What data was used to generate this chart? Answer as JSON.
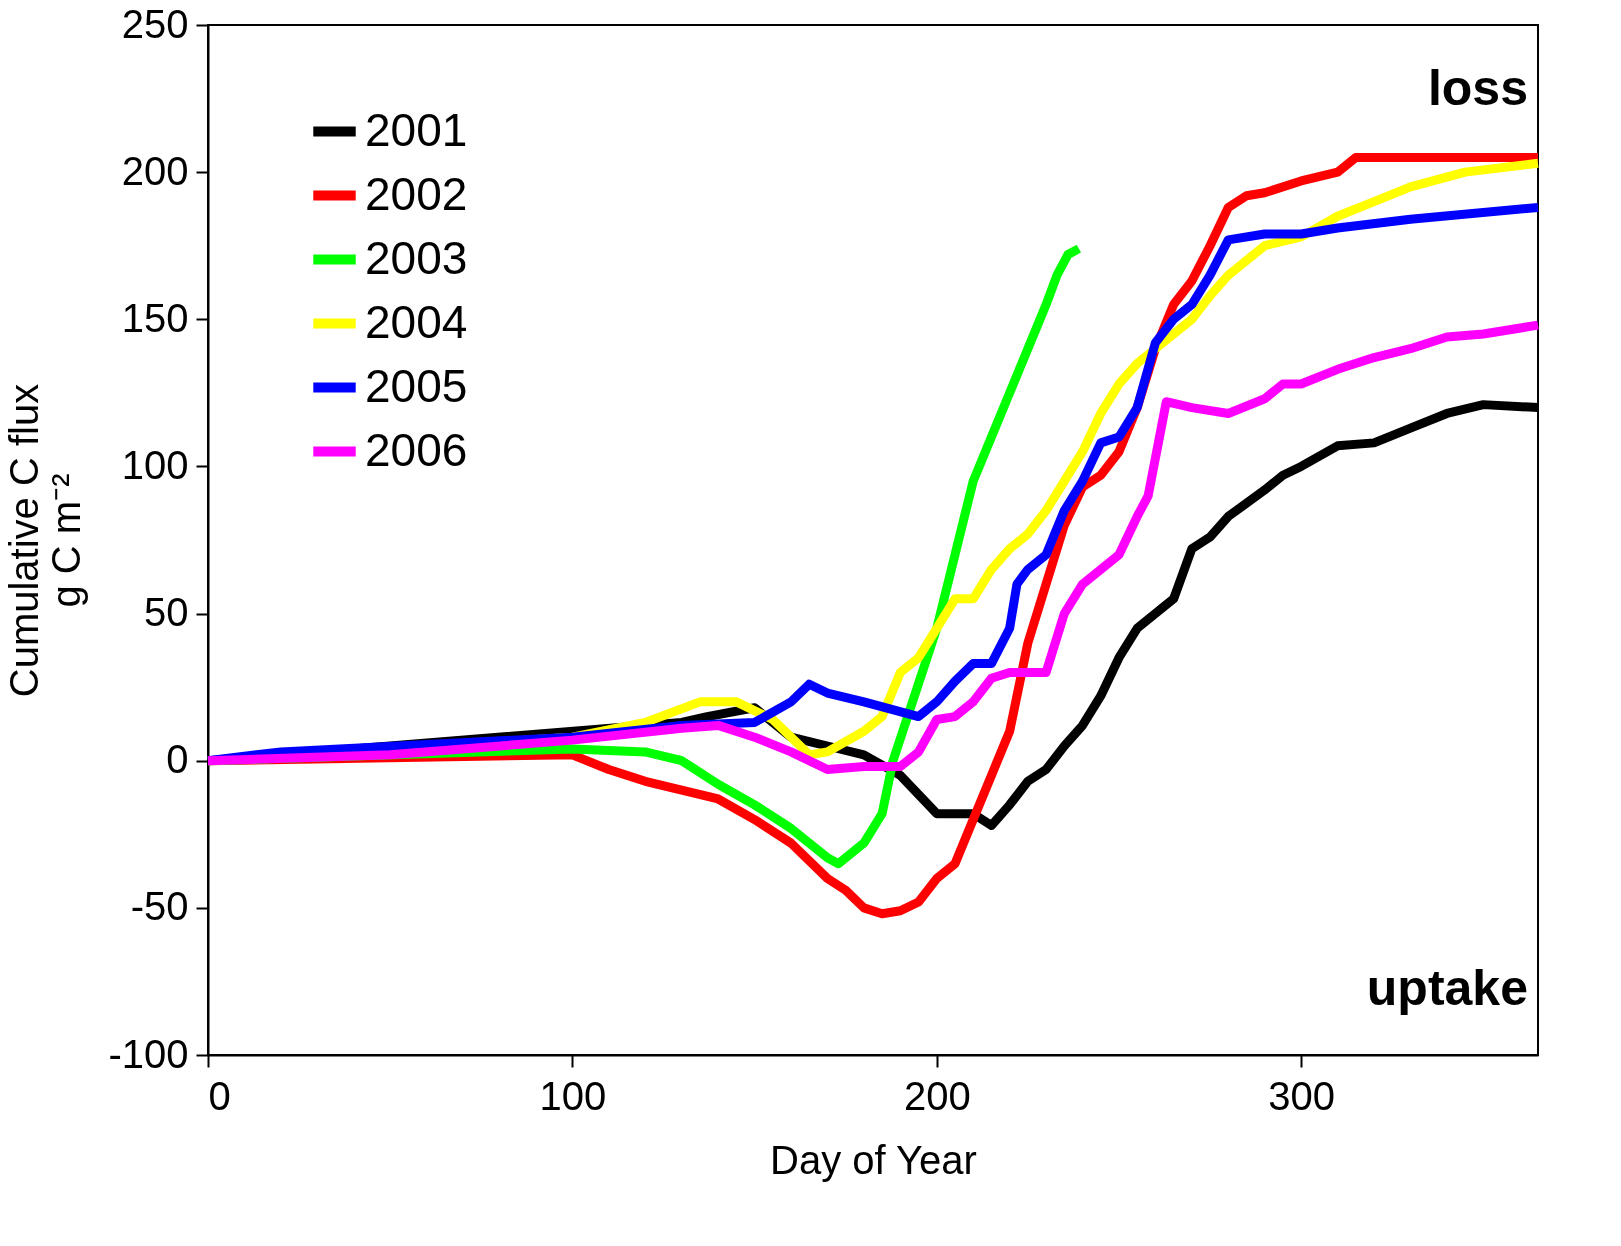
{
  "chart_data": {
    "type": "line",
    "xlabel": "Day of Year",
    "ylabel": "Cumulative C flux\ng C m⁻²",
    "xlim": [
      0,
      365
    ],
    "ylim": [
      -100,
      250
    ],
    "xticks": [
      0,
      100,
      200,
      300
    ],
    "yticks": [
      -100,
      -50,
      0,
      50,
      100,
      150,
      200,
      250
    ],
    "grid": false,
    "legend": "top left",
    "marker": "none",
    "line_style": "solid",
    "annotations": [
      "loss",
      "uptake"
    ],
    "series": [
      {
        "name": "2001",
        "color": "#000000",
        "x": [
          0,
          130,
          137,
          150,
          160,
          170,
          180,
          190,
          200,
          210,
          215,
          220,
          225,
          230,
          235,
          240,
          245,
          250,
          255,
          260,
          265,
          270,
          275,
          280,
          290,
          295,
          300,
          310,
          320,
          330,
          340,
          350,
          365
        ],
        "values": [
          0,
          13,
          15,
          18,
          8,
          5,
          2,
          -5,
          -18,
          -18,
          -22,
          -15,
          -7,
          -3,
          5,
          12,
          22,
          35,
          45,
          50,
          55,
          72,
          76,
          83,
          92,
          97,
          100,
          107,
          108,
          113,
          118,
          121,
          120
        ]
      },
      {
        "name": "2002",
        "color": "#ff0000",
        "x": [
          0,
          100,
          110,
          120,
          130,
          140,
          150,
          160,
          170,
          175,
          180,
          185,
          190,
          195,
          200,
          205,
          210,
          215,
          220,
          225,
          230,
          235,
          240,
          245,
          250,
          255,
          260,
          265,
          270,
          275,
          280,
          285,
          290,
          300,
          310,
          315,
          330,
          365
        ],
        "values": [
          0,
          2,
          -3,
          -7,
          -10,
          -13,
          -20,
          -28,
          -40,
          -44,
          -50,
          -52,
          -51,
          -48,
          -40,
          -35,
          -20,
          -5,
          10,
          40,
          60,
          80,
          93,
          97,
          105,
          120,
          140,
          155,
          163,
          175,
          188,
          192,
          193,
          197,
          200,
          205,
          205,
          205
        ]
      },
      {
        "name": "2003",
        "color": "#00ff00",
        "x": [
          0,
          100,
          120,
          130,
          140,
          150,
          160,
          170,
          173,
          180,
          185,
          188,
          192,
          200,
          205,
          210,
          215,
          220,
          225,
          230,
          233,
          236,
          239
        ],
        "values": [
          0,
          4,
          3,
          0,
          -8,
          -15,
          -23,
          -33,
          -35,
          -28,
          -18,
          0,
          15,
          45,
          70,
          95,
          110,
          125,
          140,
          155,
          165,
          172,
          174
        ]
      },
      {
        "name": "2004",
        "color": "#ffff00",
        "x": [
          0,
          100,
          120,
          135,
          145,
          155,
          165,
          170,
          180,
          185,
          190,
          195,
          200,
          205,
          210,
          215,
          220,
          225,
          230,
          235,
          240,
          245,
          250,
          255,
          260,
          265,
          270,
          275,
          280,
          290,
          300,
          310,
          320,
          330,
          345,
          365
        ],
        "values": [
          0,
          8,
          13,
          20,
          20,
          14,
          2,
          3,
          10,
          15,
          30,
          35,
          45,
          55,
          55,
          65,
          72,
          77,
          85,
          95,
          105,
          118,
          128,
          135,
          140,
          145,
          150,
          158,
          165,
          175,
          178,
          185,
          190,
          195,
          200,
          203
        ]
      },
      {
        "name": "2005",
        "color": "#0000ff",
        "x": [
          0,
          20,
          100,
          130,
          150,
          160,
          165,
          170,
          180,
          195,
          200,
          205,
          210,
          215,
          220,
          222,
          225,
          230,
          235,
          240,
          245,
          250,
          255,
          260,
          265,
          270,
          275,
          280,
          290,
          300,
          310,
          330,
          365
        ],
        "values": [
          0,
          3,
          8,
          12,
          13,
          20,
          26,
          23,
          20,
          15,
          20,
          27,
          33,
          33,
          45,
          60,
          65,
          70,
          85,
          95,
          108,
          110,
          120,
          142,
          150,
          155,
          165,
          177,
          179,
          179,
          181,
          184,
          188
        ]
      },
      {
        "name": "2006",
        "color": "#ff00ff",
        "x": [
          0,
          50,
          100,
          130,
          140,
          150,
          160,
          170,
          180,
          190,
          195,
          200,
          205,
          210,
          215,
          220,
          230,
          235,
          240,
          245,
          250,
          255,
          258,
          263,
          270,
          280,
          290,
          295,
          300,
          310,
          320,
          330,
          340,
          350,
          365
        ],
        "values": [
          0,
          2,
          7,
          11,
          12,
          8,
          3,
          -3,
          -2,
          -2,
          3,
          14,
          15,
          20,
          28,
          30,
          30,
          50,
          60,
          65,
          70,
          83,
          90,
          122,
          120,
          118,
          123,
          128,
          128,
          133,
          137,
          140,
          144,
          145,
          148
        ]
      }
    ]
  }
}
